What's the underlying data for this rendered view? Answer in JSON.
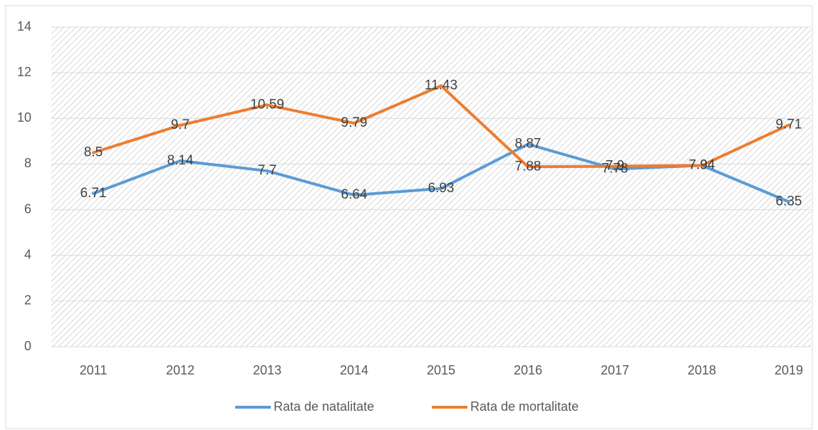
{
  "chart_data": {
    "type": "line",
    "categories": [
      "2011",
      "2012",
      "2013",
      "2014",
      "2015",
      "2016",
      "2017",
      "2018",
      "2019"
    ],
    "series": [
      {
        "name": "Rata de natalitate",
        "color": "#5b9bd5",
        "values": [
          6.71,
          8.14,
          7.7,
          6.64,
          6.93,
          8.87,
          7.78,
          7.94,
          6.35
        ]
      },
      {
        "name": "Rata de mortalitate",
        "color": "#ed7d31",
        "values": [
          8.5,
          9.7,
          10.59,
          9.79,
          11.43,
          7.88,
          7.9,
          7.94,
          9.71
        ]
      }
    ],
    "ylim": [
      0,
      14
    ],
    "yticks": [
      0,
      2,
      4,
      6,
      8,
      10,
      12,
      14
    ],
    "grid": true,
    "legend": "bottom"
  }
}
